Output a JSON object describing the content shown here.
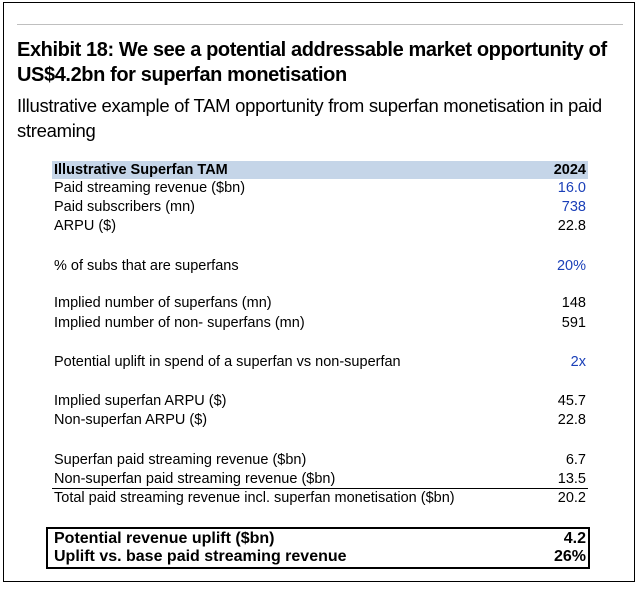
{
  "exhibit": {
    "title": "Exhibit 18: We see a potential addressable market opportunity of US$4.2bn for superfan monetisation",
    "subtitle": "Illustrative example of TAM opportunity from superfan monetisation in paid streaming"
  },
  "table": {
    "header": {
      "label": "Illustrative Superfan TAM",
      "value": "2024"
    },
    "rows": [
      {
        "label": "Paid streaming revenue ($bn)",
        "value": "16.0"
      },
      {
        "label": "Paid subscribers (mn)",
        "value": "738"
      },
      {
        "label": "ARPU ($)",
        "value": "22.8"
      },
      {
        "label": "% of subs that are superfans",
        "value": "20%"
      },
      {
        "label": "Implied number of superfans (mn)",
        "value": "148"
      },
      {
        "label": "Implied number of non- superfans (mn)",
        "value": "591"
      },
      {
        "label": "Potential uplift in spend of a superfan vs non-superfan",
        "value": "2x"
      },
      {
        "label": "Implied superfan ARPU ($)",
        "value": "45.7"
      },
      {
        "label": "Non-superfan ARPU ($)",
        "value": "22.8"
      },
      {
        "label": "Superfan paid streaming revenue ($bn)",
        "value": "6.7"
      },
      {
        "label": "Non-superfan paid streaming revenue ($bn)",
        "value": "13.5"
      },
      {
        "label": "Total paid streaming revenue incl. superfan monetisation ($bn)",
        "value": "20.2"
      }
    ],
    "summary": [
      {
        "label": "Potential revenue uplift ($bn)",
        "value": "4.2"
      },
      {
        "label": "Uplift vs. base paid streaming revenue",
        "value": "26%"
      }
    ]
  },
  "colors": {
    "header_bg": "#c5d5e8",
    "input_blue": "#1a3fb8"
  }
}
